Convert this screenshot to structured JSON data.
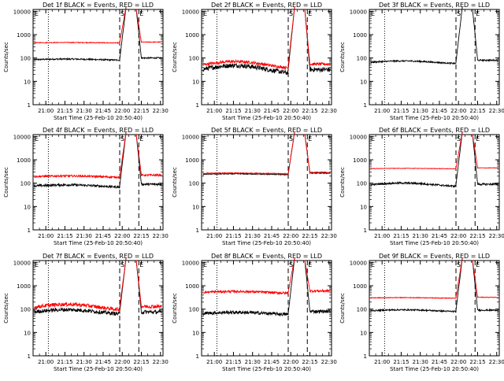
{
  "figure": {
    "xtick_labels": [
      "21:00",
      "21:15",
      "21:30",
      "21:45",
      "22:00",
      "22:15",
      "22:30"
    ],
    "xticks_min": [
      60,
      75,
      90,
      105,
      120,
      135,
      150
    ],
    "xlim_min": [
      50,
      152
    ],
    "ylim": [
      1,
      12000
    ],
    "ytick_labels": [
      "1",
      "10",
      "100",
      "1000",
      "10000"
    ],
    "ytick_values": [
      1,
      10,
      100,
      1000,
      10000
    ],
    "ylabel": "Counts/sec",
    "xlabel": "Start Time (25-Feb-10 20:50:40)",
    "vline_dotted_min": [
      62
    ],
    "vline_dashed_min": [
      118,
      133
    ],
    "flag_labels": [
      "E",
      "S",
      "E"
    ],
    "colors": {
      "events": "#000000",
      "lld": "#ff0000",
      "axes": "#000000"
    }
  },
  "chart_data": [
    {
      "type": "line",
      "title": "Det 1f BLACK = Events, RED = LLD",
      "log_y": true,
      "series": [
        {
          "color": "black",
          "base": 85,
          "noise": 0.03,
          "wave": 0.05,
          "dip_after": 100,
          "post": 100
        },
        {
          "color": "red",
          "base": 450,
          "noise": 0.015,
          "wave": 0.02,
          "dip_after": 0,
          "post": 480
        }
      ]
    },
    {
      "type": "line",
      "title": "Det 2f BLACK = Events, RED = LLD",
      "log_y": true,
      "series": [
        {
          "color": "black",
          "base": 32,
          "noise": 0.1,
          "wave": 0.35,
          "dip_after": 0,
          "post": 32
        },
        {
          "color": "red",
          "base": 50,
          "noise": 0.06,
          "wave": 0.3,
          "dip_after": 0,
          "post": 55
        }
      ]
    },
    {
      "type": "line",
      "title": "Det 3f BLACK = Events, RED = LLD",
      "log_y": true,
      "series": [
        {
          "color": "black",
          "base": 65,
          "noise": 0.03,
          "wave": 0.12,
          "dip_after": 0,
          "post": 80
        }
      ]
    },
    {
      "type": "line",
      "title": "Det 4f BLACK = Events, RED = LLD",
      "log_y": true,
      "series": [
        {
          "color": "black",
          "base": 75,
          "noise": 0.05,
          "wave": 0.1,
          "dip_after": 0,
          "post": 90
        },
        {
          "color": "red",
          "base": 190,
          "noise": 0.04,
          "wave": 0.06,
          "dip_after": 0,
          "post": 220
        }
      ]
    },
    {
      "type": "line",
      "title": "Det 5f BLACK = Events, RED = LLD",
      "log_y": true,
      "series": [
        {
          "color": "black",
          "base": 240,
          "noise": 0.02,
          "wave": 0.04,
          "dip_after": 0,
          "post": 270
        },
        {
          "color": "red",
          "base": 260,
          "noise": 0.02,
          "wave": 0.03,
          "dip_after": 0,
          "post": 290
        }
      ]
    },
    {
      "type": "line",
      "title": "Det 6f BLACK = Events, RED = LLD",
      "log_y": true,
      "series": [
        {
          "color": "black",
          "base": 85,
          "noise": 0.04,
          "wave": 0.15,
          "dip_after": 0,
          "post": 90
        },
        {
          "color": "red",
          "base": 420,
          "noise": 0.01,
          "wave": 0.02,
          "dip_after": 0,
          "post": 450
        }
      ]
    },
    {
      "type": "line",
      "title": "Det 7f BLACK = Events, RED = LLD",
      "log_y": true,
      "series": [
        {
          "color": "black",
          "base": 75,
          "noise": 0.08,
          "wave": 0.2,
          "dip_after": 0,
          "post": 75
        },
        {
          "color": "red",
          "base": 120,
          "noise": 0.08,
          "wave": 0.25,
          "dip_after": 0,
          "post": 130
        }
      ]
    },
    {
      "type": "line",
      "title": "Det 8f BLACK = Events, RED = LLD",
      "log_y": true,
      "series": [
        {
          "color": "black",
          "base": 65,
          "noise": 0.07,
          "wave": 0.1,
          "dip_after": 0,
          "post": 80
        },
        {
          "color": "red",
          "base": 520,
          "noise": 0.05,
          "wave": 0.08,
          "dip_after": 0,
          "post": 600
        }
      ]
    },
    {
      "type": "line",
      "title": "Det 9f BLACK = Events, RED = LLD",
      "log_y": true,
      "series": [
        {
          "color": "black",
          "base": 85,
          "noise": 0.03,
          "wave": 0.08,
          "dip_after": 0,
          "post": 90
        },
        {
          "color": "red",
          "base": 300,
          "noise": 0.015,
          "wave": 0.03,
          "dip_after": 0,
          "post": 320
        }
      ]
    }
  ]
}
